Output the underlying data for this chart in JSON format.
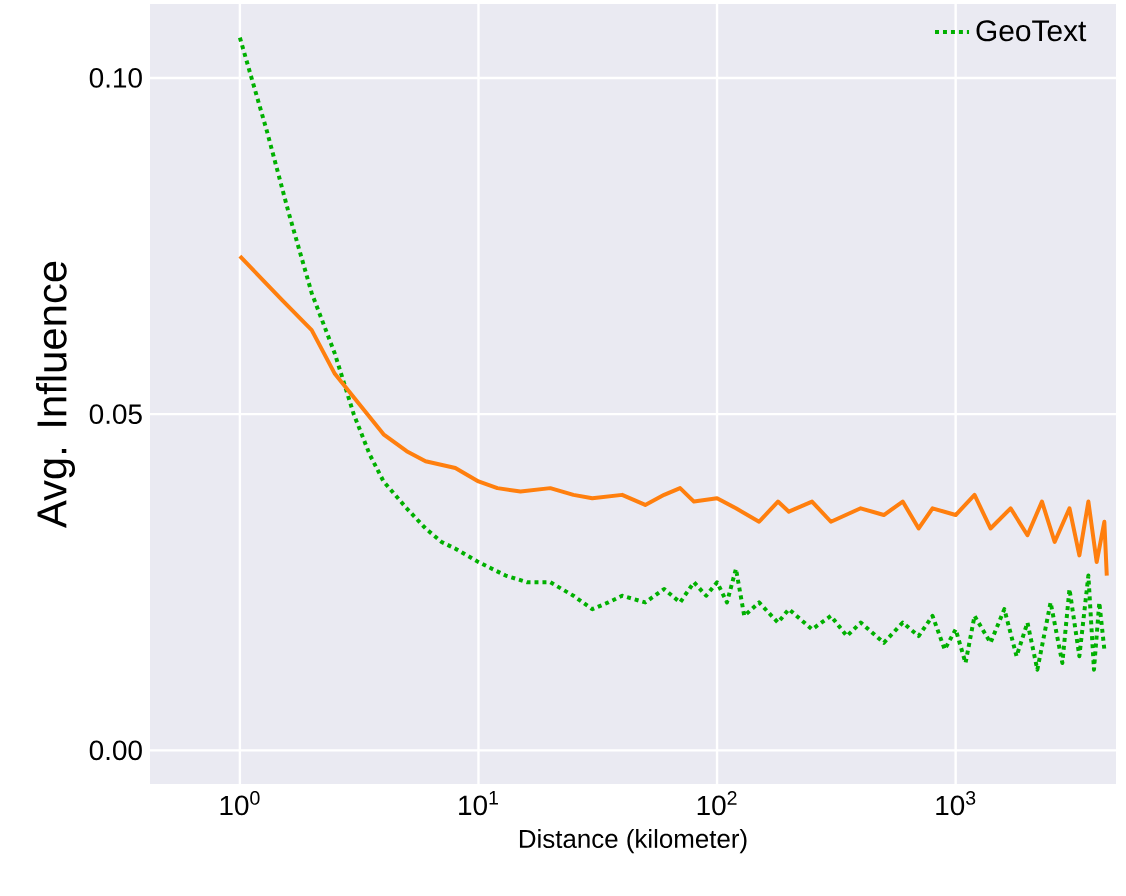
{
  "chart_data": {
    "type": "line",
    "xlabel": "Distance (kilometer)",
    "ylabel": "Avg. Influence",
    "log": "x",
    "grid": true,
    "legend": "top right",
    "marker": "none",
    "xlim": [
      0.42,
      4700
    ],
    "ylim": [
      -0.005,
      0.111
    ],
    "xticks": [
      {
        "value": 1,
        "label": "10$^{0}$"
      },
      {
        "value": 10,
        "label": "10$^{1}$"
      },
      {
        "value": 100,
        "label": "10$^{2}$"
      },
      {
        "value": 1000,
        "label": "10$^{3}$"
      }
    ],
    "yticks": [
      {
        "value": 0,
        "label": "0.00"
      },
      {
        "value": 0.05,
        "label": "0.05"
      },
      {
        "value": 0.1,
        "label": "0.10"
      }
    ],
    "series": [
      {
        "name": "GeoText",
        "color": "#00b000",
        "line_style": "dotted",
        "x": [
          1,
          1.3,
          1.6,
          2,
          2.5,
          3,
          3.5,
          4,
          5,
          6,
          7,
          8,
          10,
          13,
          16,
          20,
          25,
          30,
          35,
          40,
          50,
          60,
          70,
          80,
          90,
          100,
          110,
          120,
          130,
          150,
          180,
          200,
          250,
          300,
          350,
          400,
          500,
          600,
          700,
          800,
          900,
          1000,
          1100,
          1200,
          1400,
          1600,
          1800,
          2000,
          2200,
          2500,
          2800,
          3000,
          3300,
          3600,
          3800,
          4000,
          4200
        ],
        "values": [
          0.106,
          0.092,
          0.08,
          0.068,
          0.059,
          0.05,
          0.044,
          0.04,
          0.036,
          0.033,
          0.031,
          0.03,
          0.028,
          0.026,
          0.025,
          0.025,
          0.023,
          0.021,
          0.022,
          0.023,
          0.022,
          0.024,
          0.022,
          0.025,
          0.023,
          0.025,
          0.022,
          0.027,
          0.02,
          0.022,
          0.019,
          0.021,
          0.018,
          0.02,
          0.017,
          0.019,
          0.016,
          0.019,
          0.017,
          0.02,
          0.015,
          0.018,
          0.013,
          0.02,
          0.016,
          0.021,
          0.014,
          0.019,
          0.012,
          0.022,
          0.013,
          0.024,
          0.014,
          0.026,
          0.012,
          0.022,
          0.015
        ]
      },
      {
        "color": "#ff7f0e",
        "line_style": "solid",
        "x": [
          1,
          1.5,
          2,
          2.5,
          3,
          4,
          5,
          6,
          8,
          10,
          12,
          15,
          20,
          25,
          30,
          40,
          50,
          60,
          70,
          80,
          100,
          120,
          150,
          180,
          200,
          250,
          300,
          400,
          500,
          600,
          700,
          800,
          1000,
          1200,
          1400,
          1700,
          2000,
          2300,
          2600,
          3000,
          3300,
          3600,
          3900,
          4200,
          4300
        ],
        "values": [
          0.0735,
          0.067,
          0.0625,
          0.056,
          0.0525,
          0.047,
          0.0445,
          0.043,
          0.042,
          0.04,
          0.039,
          0.0385,
          0.039,
          0.038,
          0.0375,
          0.038,
          0.0365,
          0.038,
          0.039,
          0.037,
          0.0375,
          0.036,
          0.034,
          0.037,
          0.0355,
          0.037,
          0.034,
          0.036,
          0.035,
          0.037,
          0.033,
          0.036,
          0.035,
          0.038,
          0.033,
          0.036,
          0.032,
          0.037,
          0.031,
          0.036,
          0.029,
          0.037,
          0.028,
          0.034,
          0.026
        ]
      }
    ]
  }
}
